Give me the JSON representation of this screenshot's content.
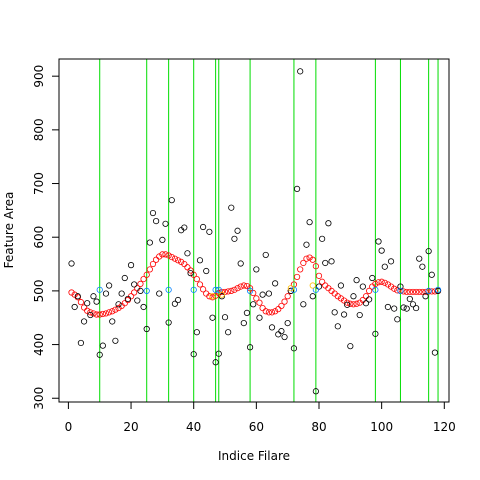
{
  "chart_data": {
    "type": "scatter",
    "title": "",
    "xlabel": "Indice Filare",
    "ylabel": "Feature Area",
    "xlim": [
      -3,
      121.5
    ],
    "ylim": [
      293,
      932
    ],
    "x_ticks": [
      0,
      20,
      40,
      60,
      80,
      100,
      120
    ],
    "y_ticks": [
      300,
      400,
      500,
      600,
      700,
      800,
      900
    ],
    "grid": false,
    "legend": "none",
    "colors": {
      "observed": "#000000",
      "smooth": "#ff0000",
      "boundary_point": "#0080ff",
      "transition_point": "#ffbf00",
      "vertical_line": "#00dd00"
    },
    "vertical_lines_x": [
      10,
      25,
      32,
      40,
      47,
      48,
      58,
      72,
      79,
      98,
      106,
      115,
      118
    ],
    "series": [
      {
        "kind": "observed",
        "points": [
          [
            1,
            551
          ],
          [
            2,
            470
          ],
          [
            3,
            490
          ],
          [
            4,
            403
          ],
          [
            5,
            443
          ],
          [
            6,
            477
          ],
          [
            7,
            455
          ],
          [
            8,
            490
          ],
          [
            9,
            480
          ],
          [
            10,
            381
          ],
          [
            11,
            398
          ],
          [
            12,
            495
          ],
          [
            13,
            510
          ],
          [
            14,
            443
          ],
          [
            15,
            407
          ],
          [
            16,
            475
          ],
          [
            17,
            495
          ],
          [
            18,
            524
          ],
          [
            19,
            485
          ],
          [
            20,
            548
          ],
          [
            21,
            512
          ],
          [
            22,
            482
          ],
          [
            23,
            500
          ],
          [
            24,
            470
          ],
          [
            25,
            429
          ],
          [
            26,
            590
          ],
          [
            27,
            645
          ],
          [
            28,
            630
          ],
          [
            29,
            495
          ],
          [
            30,
            595
          ],
          [
            31,
            625
          ],
          [
            32,
            441
          ],
          [
            33,
            669
          ],
          [
            34,
            476
          ],
          [
            35,
            483
          ],
          [
            36,
            613
          ],
          [
            37,
            618
          ],
          [
            38,
            570
          ],
          [
            39,
            533
          ],
          [
            40,
            382
          ],
          [
            41,
            423
          ],
          [
            42,
            557
          ],
          [
            43,
            619
          ],
          [
            44,
            537
          ],
          [
            45,
            610
          ],
          [
            46,
            450
          ],
          [
            47,
            367
          ],
          [
            48,
            383
          ],
          [
            49,
            490
          ],
          [
            50,
            451
          ],
          [
            51,
            423
          ],
          [
            52,
            655
          ],
          [
            53,
            597
          ],
          [
            54,
            612
          ],
          [
            55,
            551
          ],
          [
            56,
            440
          ],
          [
            57,
            459
          ],
          [
            58,
            395
          ],
          [
            59,
            475
          ],
          [
            60,
            540
          ],
          [
            61,
            450
          ],
          [
            62,
            493
          ],
          [
            63,
            567
          ],
          [
            64,
            495
          ],
          [
            65,
            432
          ],
          [
            66,
            514
          ],
          [
            67,
            419
          ],
          [
            68,
            425
          ],
          [
            69,
            414
          ],
          [
            70,
            440
          ],
          [
            71,
            500
          ],
          [
            72,
            393
          ],
          [
            73,
            690
          ],
          [
            74,
            909
          ],
          [
            75,
            475
          ],
          [
            76,
            586
          ],
          [
            77,
            628
          ],
          [
            78,
            490
          ],
          [
            79,
            313
          ],
          [
            80,
            508
          ],
          [
            81,
            597
          ],
          [
            82,
            552
          ],
          [
            83,
            626
          ],
          [
            84,
            555
          ],
          [
            85,
            460
          ],
          [
            86,
            434
          ],
          [
            87,
            510
          ],
          [
            88,
            456
          ],
          [
            89,
            474
          ],
          [
            90,
            397
          ],
          [
            91,
            490
          ],
          [
            92,
            520
          ],
          [
            93,
            455
          ],
          [
            94,
            508
          ],
          [
            95,
            477
          ],
          [
            96,
            484
          ],
          [
            97,
            524
          ],
          [
            98,
            420
          ],
          [
            99,
            592
          ],
          [
            100,
            575
          ],
          [
            101,
            545
          ],
          [
            102,
            470
          ],
          [
            103,
            555
          ],
          [
            104,
            467
          ],
          [
            105,
            447
          ],
          [
            106,
            508
          ],
          [
            107,
            469
          ],
          [
            108,
            467
          ],
          [
            109,
            485
          ],
          [
            110,
            475
          ],
          [
            111,
            468
          ],
          [
            112,
            560
          ],
          [
            113,
            545
          ],
          [
            114,
            490
          ],
          [
            115,
            574
          ],
          [
            116,
            530
          ],
          [
            117,
            385
          ],
          [
            118,
            500
          ]
        ]
      },
      {
        "kind": "smooth",
        "points": [
          [
            1,
            497
          ],
          [
            2,
            493
          ],
          [
            3,
            488
          ],
          [
            4,
            479
          ],
          [
            5,
            469
          ],
          [
            6,
            463
          ],
          [
            7,
            460
          ],
          [
            8,
            458
          ],
          [
            9,
            456
          ],
          [
            10,
            456
          ],
          [
            11,
            457
          ],
          [
            12,
            458
          ],
          [
            13,
            460
          ],
          [
            14,
            462
          ],
          [
            15,
            465
          ],
          [
            16,
            468
          ],
          [
            17,
            472
          ],
          [
            18,
            477
          ],
          [
            19,
            483
          ],
          [
            20,
            490
          ],
          [
            21,
            497
          ],
          [
            22,
            505
          ],
          [
            23,
            513
          ],
          [
            24,
            522
          ],
          [
            25,
            530
          ],
          [
            26,
            540
          ],
          [
            27,
            550
          ],
          [
            28,
            558
          ],
          [
            29,
            564
          ],
          [
            30,
            568
          ],
          [
            31,
            568
          ],
          [
            32,
            566
          ],
          [
            33,
            563
          ],
          [
            34,
            560
          ],
          [
            35,
            557
          ],
          [
            36,
            554
          ],
          [
            37,
            550
          ],
          [
            38,
            544
          ],
          [
            39,
            538
          ],
          [
            40,
            530
          ],
          [
            41,
            522
          ],
          [
            42,
            512
          ],
          [
            43,
            503
          ],
          [
            44,
            495
          ],
          [
            45,
            490
          ],
          [
            46,
            488
          ],
          [
            47,
            491
          ],
          [
            48,
            496
          ],
          [
            49,
            498
          ],
          [
            50,
            498
          ],
          [
            51,
            499
          ],
          [
            52,
            500
          ],
          [
            53,
            502
          ],
          [
            54,
            505
          ],
          [
            55,
            508
          ],
          [
            56,
            510
          ],
          [
            57,
            509
          ],
          [
            58,
            505
          ],
          [
            59,
            496
          ],
          [
            60,
            486
          ],
          [
            61,
            478
          ],
          [
            62,
            468
          ],
          [
            63,
            462
          ],
          [
            64,
            460
          ],
          [
            65,
            460
          ],
          [
            66,
            462
          ],
          [
            67,
            466
          ],
          [
            68,
            472
          ],
          [
            69,
            480
          ],
          [
            70,
            490
          ],
          [
            71,
            500
          ],
          [
            72,
            512
          ],
          [
            73,
            526
          ],
          [
            74,
            540
          ],
          [
            75,
            552
          ],
          [
            76,
            560
          ],
          [
            77,
            562
          ],
          [
            78,
            558
          ],
          [
            79,
            546
          ],
          [
            80,
            528
          ],
          [
            81,
            517
          ],
          [
            82,
            510
          ],
          [
            83,
            505
          ],
          [
            84,
            500
          ],
          [
            85,
            495
          ],
          [
            86,
            490
          ],
          [
            87,
            486
          ],
          [
            88,
            482
          ],
          [
            89,
            478
          ],
          [
            90,
            476
          ],
          [
            91,
            475
          ],
          [
            92,
            476
          ],
          [
            93,
            478
          ],
          [
            94,
            483
          ],
          [
            95,
            490
          ],
          [
            96,
            500
          ],
          [
            97,
            508
          ],
          [
            98,
            513
          ],
          [
            99,
            516
          ],
          [
            100,
            517
          ],
          [
            101,
            515
          ],
          [
            102,
            512
          ],
          [
            103,
            508
          ],
          [
            104,
            504
          ],
          [
            105,
            501
          ],
          [
            106,
            500
          ],
          [
            107,
            499
          ],
          [
            108,
            498
          ],
          [
            109,
            498
          ],
          [
            110,
            498
          ],
          [
            111,
            498
          ],
          [
            112,
            498
          ],
          [
            113,
            498
          ],
          [
            114,
            498
          ],
          [
            115,
            499
          ],
          [
            116,
            499
          ],
          [
            117,
            499
          ],
          [
            118,
            500
          ]
        ]
      },
      {
        "kind": "boundary_point",
        "points": [
          [
            10,
            502
          ],
          [
            25,
            500
          ],
          [
            32,
            502
          ],
          [
            40,
            502
          ],
          [
            47,
            502
          ],
          [
            48,
            502
          ],
          [
            58,
            500
          ],
          [
            72,
            502
          ],
          [
            79,
            502
          ],
          [
            98,
            502
          ],
          [
            106,
            500
          ],
          [
            115,
            500
          ],
          [
            118,
            502
          ]
        ]
      },
      {
        "kind": "transition_point",
        "points": [
          [
            46,
            490
          ],
          [
            49,
            493
          ],
          [
            71,
            505
          ],
          [
            78,
            510
          ]
        ]
      }
    ]
  }
}
